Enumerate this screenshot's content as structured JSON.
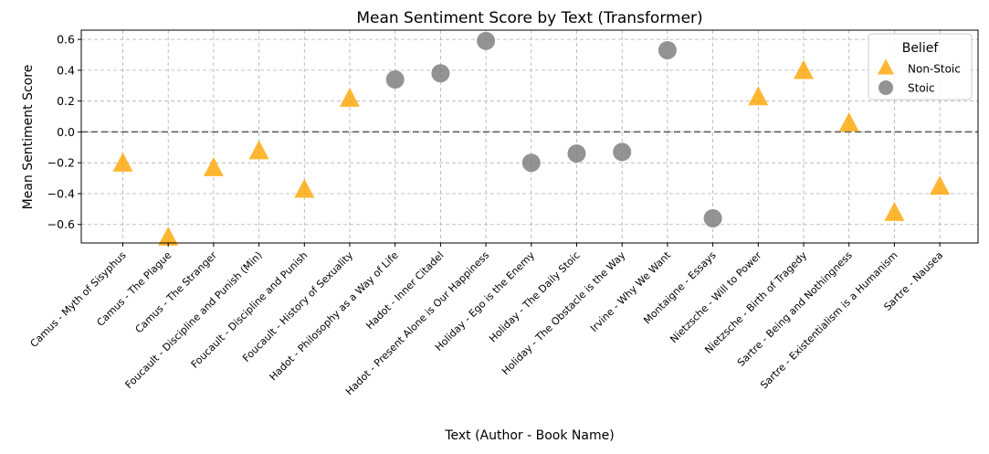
{
  "chart_data": {
    "type": "scatter",
    "title": "Mean Sentiment Score by Text (Transformer)",
    "xlabel": "Text (Author - Book Name)",
    "ylabel": "Mean Sentiment Score",
    "ylim": [
      -0.72,
      0.66
    ],
    "yticks": [
      -0.6,
      -0.4,
      -0.2,
      0.0,
      0.2,
      0.4,
      0.6
    ],
    "ytick_labels": [
      "−0.6",
      "−0.4",
      "−0.2",
      "0.0",
      "0.2",
      "0.4",
      "0.6"
    ],
    "grid": true,
    "reference_line": 0.0,
    "categories": [
      "Camus - Myth of Sisyphus",
      "Camus - The Plague",
      "Camus - The Stranger",
      "Foucault - Discipline and Punish (Min)",
      "Foucault - Discipline and Punish",
      "Foucault - History of Sexuality",
      "Hadot - Philosophy as a Way of Life",
      "Hadot - Inner Citadel",
      "Hadot - Present Alone is Our Happiness",
      "Holiday - Ego is the Enemy",
      "Holiday - The Daily Stoic",
      "Holiday - The Obstacle is the Way",
      "Irvine - Why We Want",
      "Montaigne - Essays",
      "Nietzsche - Will to Power",
      "Nietzsche - Birth of Tragedy",
      "Sartre - Being and Nothingness",
      "Sartre - Existentialism is a Humanism",
      "Sartre - Nausea"
    ],
    "legend": {
      "title": "Belief",
      "position": "upper-right"
    },
    "series": [
      {
        "name": "Non-Stoic",
        "marker": "triangle",
        "color": "#ffa500",
        "points": [
          {
            "category": "Camus - Myth of Sisyphus",
            "y": -0.21
          },
          {
            "category": "Camus - The Plague",
            "y": -0.69
          },
          {
            "category": "Camus - The Stranger",
            "y": -0.24
          },
          {
            "category": "Foucault - Discipline and Punish (Min)",
            "y": -0.13
          },
          {
            "category": "Foucault - Discipline and Punish",
            "y": -0.38
          },
          {
            "category": "Foucault - History of Sexuality",
            "y": 0.21
          },
          {
            "category": "Nietzsche - Will to Power",
            "y": 0.22
          },
          {
            "category": "Nietzsche - Birth of Tragedy",
            "y": 0.39
          },
          {
            "category": "Sartre - Being and Nothingness",
            "y": 0.05
          },
          {
            "category": "Sartre - Existentialism is a Humanism",
            "y": -0.53
          },
          {
            "category": "Sartre - Nausea",
            "y": -0.36
          }
        ]
      },
      {
        "name": "Stoic",
        "marker": "circle",
        "color": "#808080",
        "points": [
          {
            "category": "Hadot - Philosophy as a Way of Life",
            "y": 0.34
          },
          {
            "category": "Hadot - Inner Citadel",
            "y": 0.38
          },
          {
            "category": "Hadot - Present Alone is Our Happiness",
            "y": 0.59
          },
          {
            "category": "Holiday - Ego is the Enemy",
            "y": -0.2
          },
          {
            "category": "Holiday - The Daily Stoic",
            "y": -0.14
          },
          {
            "category": "Holiday - The Obstacle is the Way",
            "y": -0.13
          },
          {
            "category": "Irvine - Why We Want",
            "y": 0.53
          },
          {
            "category": "Montaigne - Essays",
            "y": -0.56
          }
        ]
      }
    ]
  }
}
